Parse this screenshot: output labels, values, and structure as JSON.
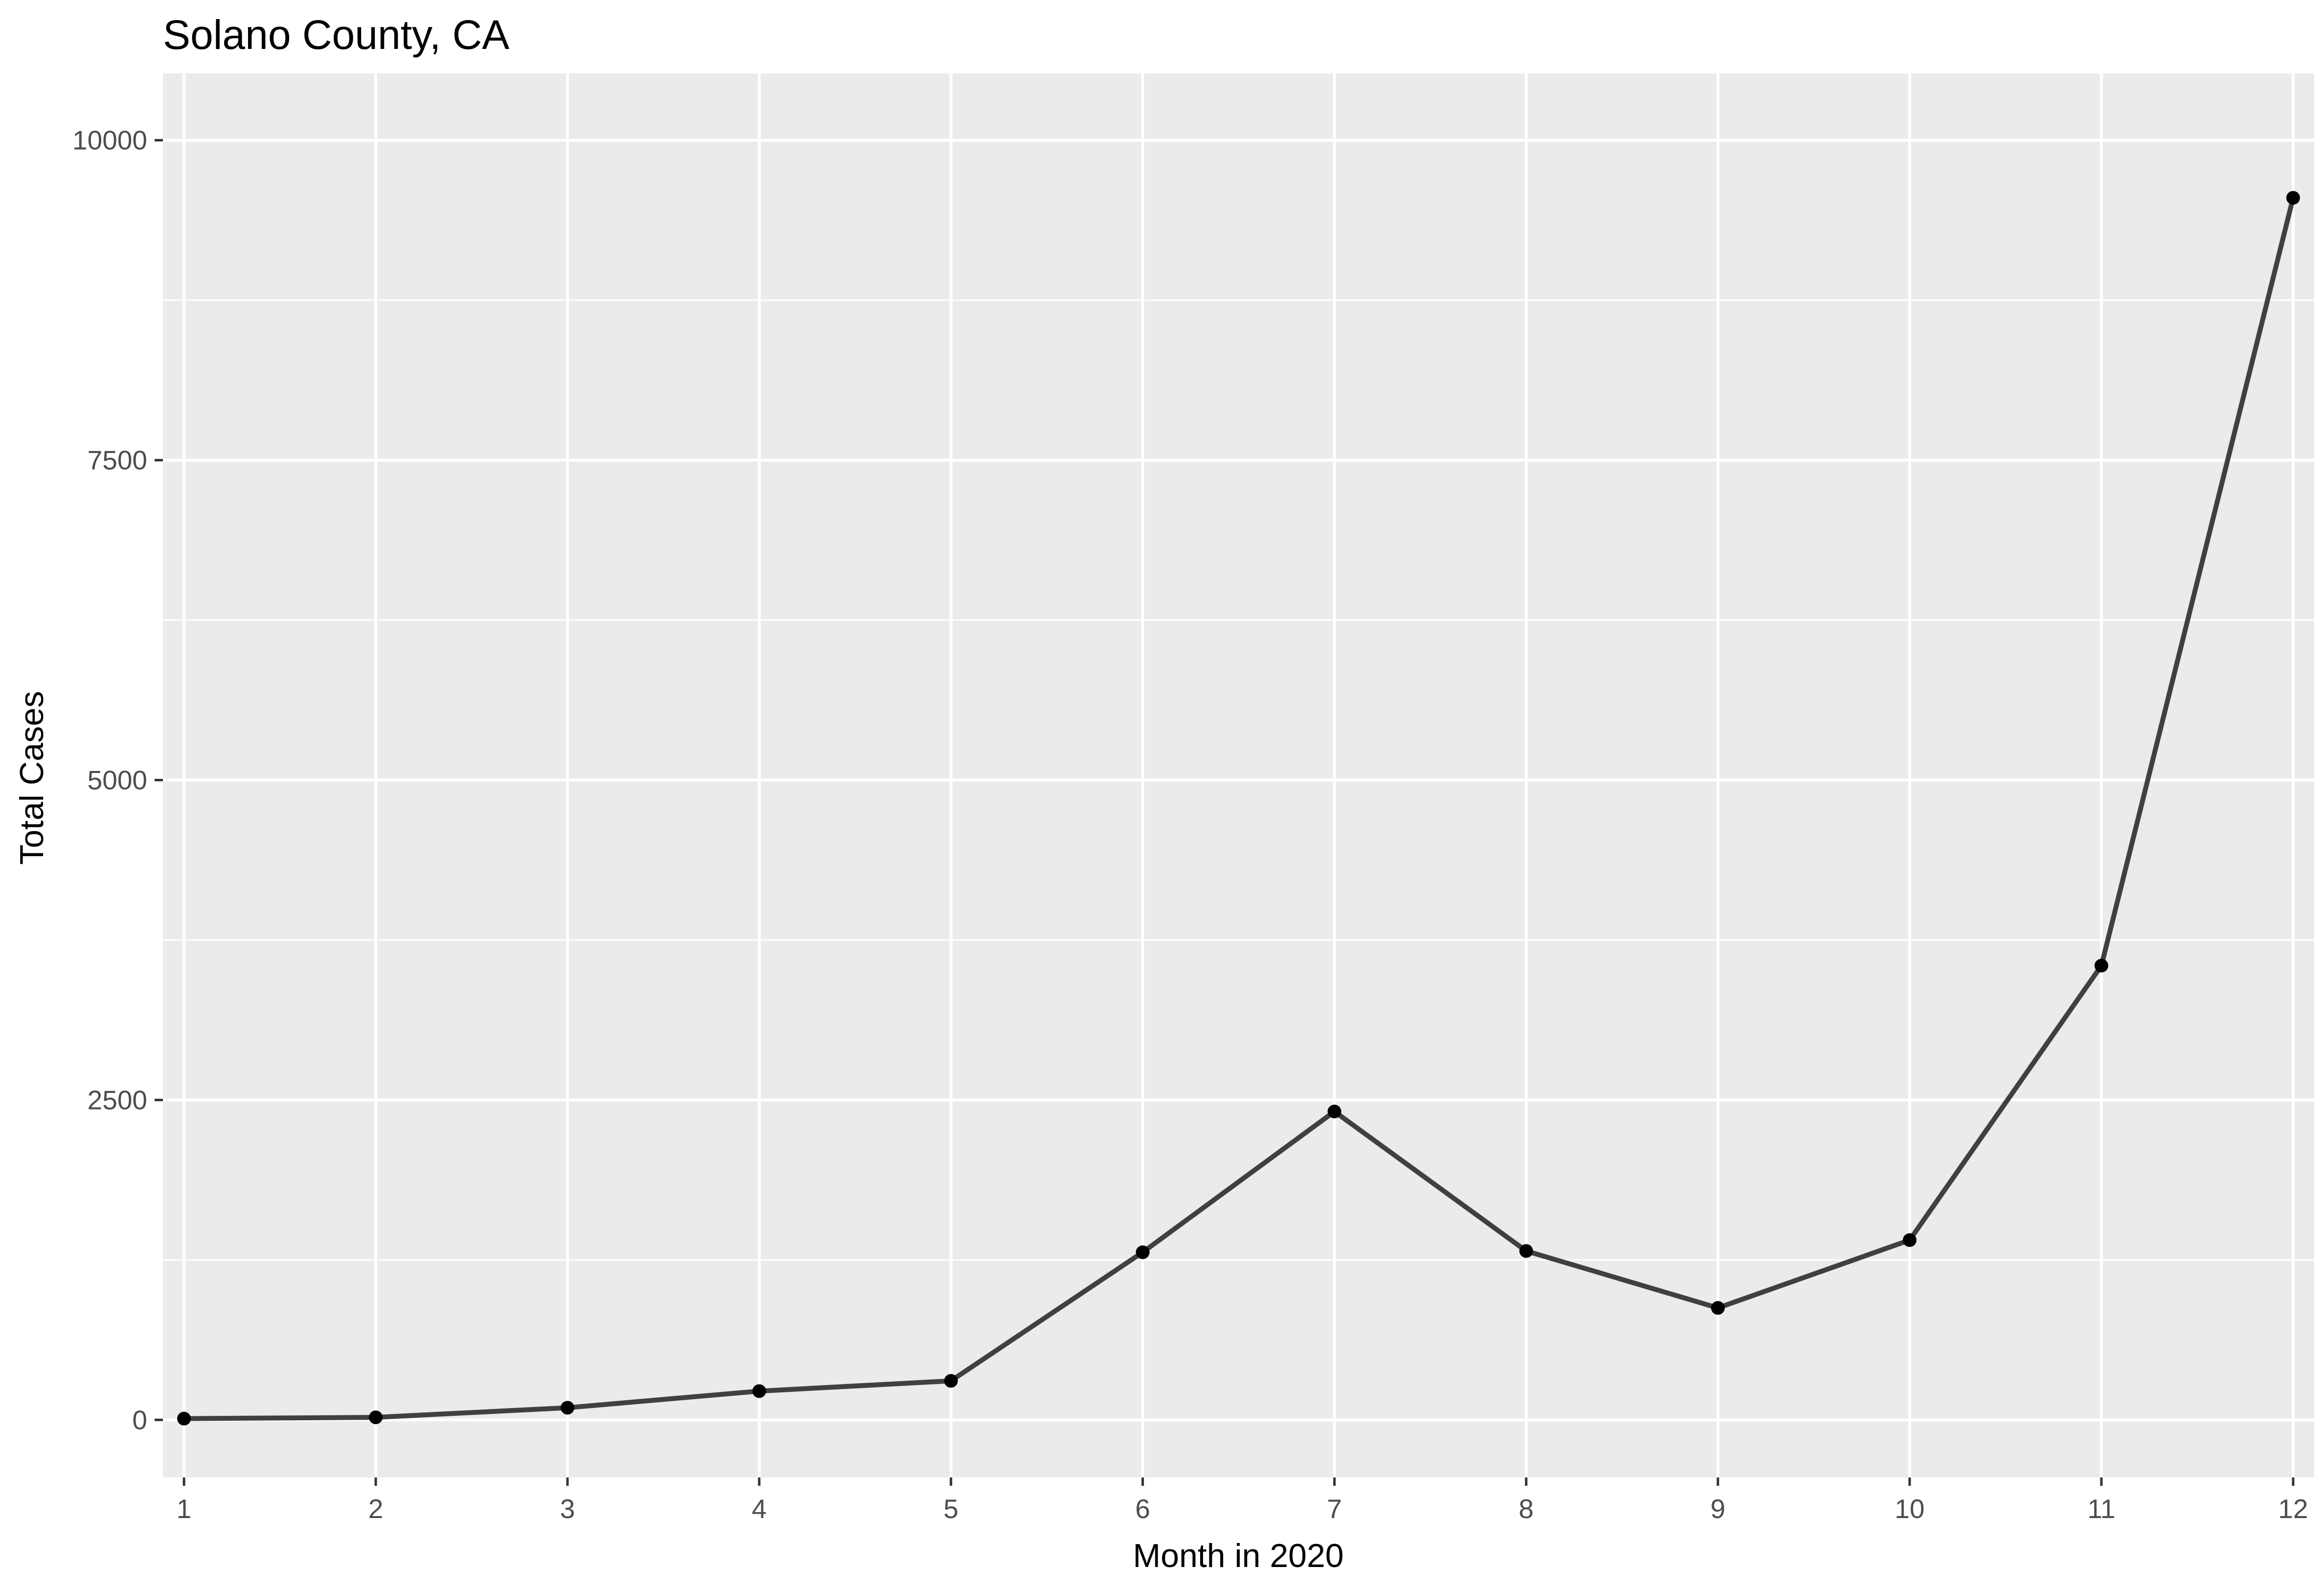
{
  "chart_data": {
    "type": "line",
    "title": "Solano County, CA",
    "xlabel": "Month in 2020",
    "ylabel": "Total Cases",
    "x": [
      1,
      2,
      3,
      4,
      5,
      6,
      7,
      8,
      9,
      10,
      11,
      12
    ],
    "x_ticks": [
      "1",
      "2",
      "3",
      "4",
      "5",
      "6",
      "7",
      "8",
      "9",
      "10",
      "11",
      "12"
    ],
    "y_ticks": [
      "0",
      "2500",
      "5000",
      "7500",
      "10000"
    ],
    "y_tick_values": [
      0,
      2500,
      5000,
      7500,
      10000
    ],
    "xlim": [
      0.89,
      12.11
    ],
    "ylim": [
      -450,
      10000
    ],
    "series": [
      {
        "values": [
          10,
          20,
          95,
          225,
          305,
          1310,
          2410,
          1320,
          875,
          1405,
          3550,
          9550
        ]
      }
    ],
    "grid": true,
    "legend": "none",
    "colors": {
      "panel_background": "#ebebeb",
      "grid_line": "#ffffff",
      "line": "#404040",
      "point": "#000000",
      "tick_mark": "#333333"
    }
  }
}
